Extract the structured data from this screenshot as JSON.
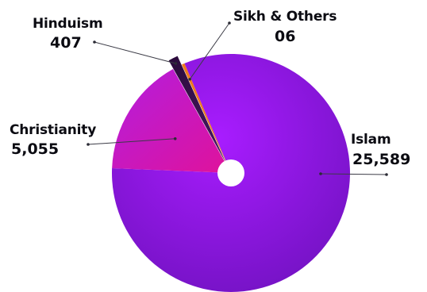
{
  "chart_data": {
    "type": "pie",
    "title": "",
    "slices": [
      {
        "name": "Islam",
        "value": 25589,
        "value_label": "25,589",
        "color": "#8a14d9"
      },
      {
        "name": "Christianity",
        "value": 5055,
        "value_label": "5,055",
        "color": "#c516b4"
      },
      {
        "name": "Hinduism",
        "value": 407,
        "value_label": "407",
        "color": "#3a1050"
      },
      {
        "name": "Sikh & Others",
        "value": 6,
        "value_label": "06",
        "color": "#ee7a1c"
      }
    ],
    "donut_hole": true,
    "exploded_slice": "Hinduism",
    "legend": "none"
  }
}
